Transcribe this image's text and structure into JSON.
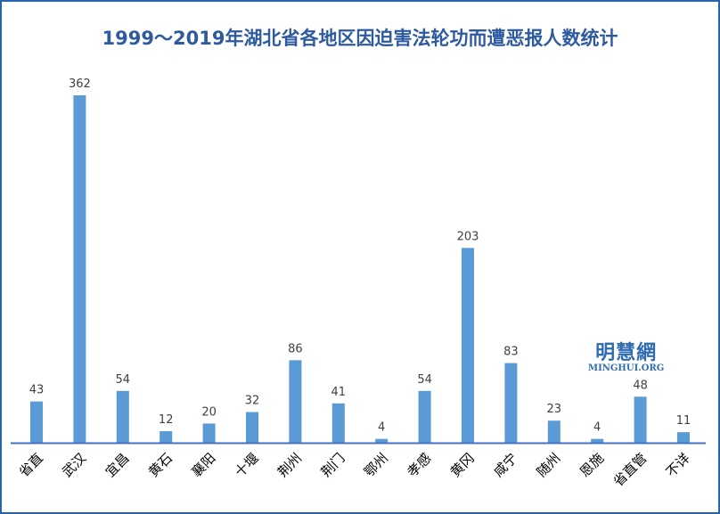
{
  "chart_data": {
    "type": "bar",
    "title": "1999～2019年湖北省各地区因迫害法轮功而遭恶报人数统计",
    "categories": [
      "省直",
      "武汉",
      "宜昌",
      "黄石",
      "襄阳",
      "十堰",
      "荆州",
      "荆门",
      "鄂州",
      "孝感",
      "黄冈",
      "咸宁",
      "随州",
      "恩施",
      "省直管",
      "不详"
    ],
    "values": [
      43,
      362,
      54,
      12,
      20,
      32,
      86,
      41,
      4,
      54,
      203,
      83,
      23,
      4,
      48,
      11
    ],
    "xlabel": "",
    "ylabel": "",
    "ylim": [
      0,
      362
    ],
    "grid": false,
    "legend": "none",
    "bar_color": "#5b9bd5",
    "axis_color": "#4472c4"
  },
  "watermark": {
    "cn": "明慧網",
    "en": "MINGHUI.ORG"
  }
}
